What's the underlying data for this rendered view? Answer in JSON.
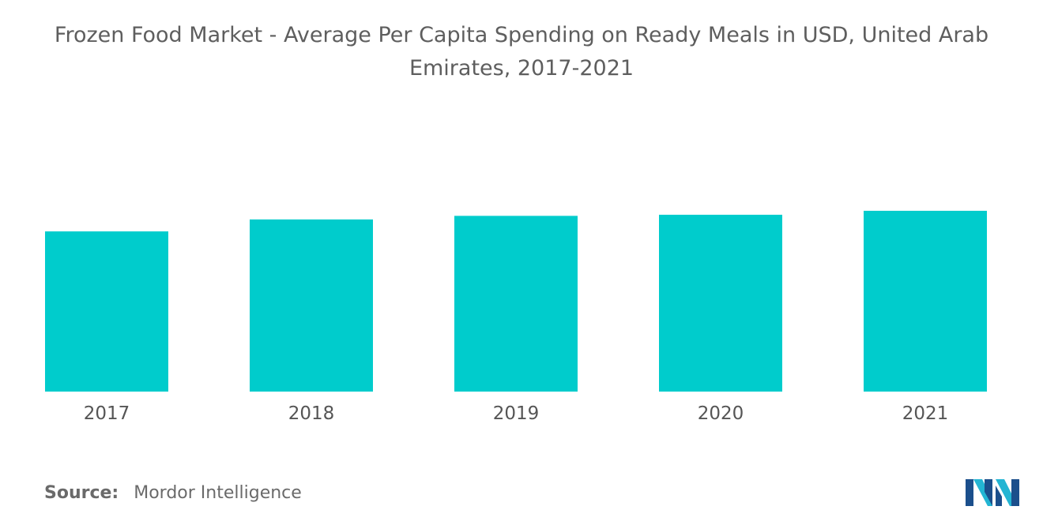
{
  "title": {
    "line1": "Frozen Food Market - Average Per Capita Spending on Ready Meals in USD, United Arab",
    "line2": "Emirates, 2017-2021"
  },
  "source": {
    "label": "Source:",
    "value": "Mordor Intelligence"
  },
  "logo": {
    "icon": "mordor-intelligence-logo-icon",
    "colors": [
      "#1b4f8c",
      "#23b5d3"
    ]
  },
  "colors": {
    "bar": "#00cccc",
    "title": "#5e5e5e",
    "tick_label": "#555555",
    "source": "#6a6a6a"
  },
  "chart_data": {
    "type": "bar",
    "title": "Frozen Food Market - Average Per Capita Spending on Ready Meals in USD, United Arab Emirates, 2017-2021",
    "categories": [
      "2017",
      "2018",
      "2019",
      "2020",
      "2021"
    ],
    "values": [
      0.886,
      0.952,
      0.972,
      0.978,
      1.0
    ],
    "xlabel": "",
    "ylabel": "",
    "ylim": [
      0,
      1.0
    ],
    "grid": false,
    "legend": "none",
    "data_labels": false,
    "note": "no y-axis or value labels shown; values are relative bar heights (tallest bar = 1)"
  }
}
